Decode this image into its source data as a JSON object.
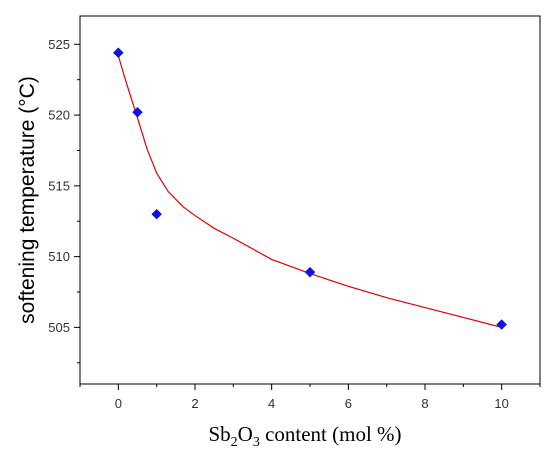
{
  "chart_data": {
    "type": "scatter",
    "series": [
      {
        "x": [
          0,
          0.5,
          1,
          5,
          10
        ],
        "y": [
          524.4,
          520.2,
          513.0,
          508.9,
          505.2
        ],
        "marker": "diamond",
        "color": "#1010e0"
      }
    ],
    "fit": {
      "color": "#e00000",
      "x": [
        0,
        0.15,
        0.3,
        0.5,
        0.75,
        1.0,
        1.3,
        1.7,
        2,
        2.5,
        3,
        4,
        5,
        6,
        7,
        8,
        9,
        10
      ],
      "y": [
        524.2,
        522.8,
        521.5,
        519.8,
        517.6,
        515.9,
        514.6,
        513.5,
        512.9,
        512.0,
        511.3,
        509.8,
        508.8,
        507.9,
        507.1,
        506.4,
        505.7,
        505.0
      ]
    },
    "xlim": [
      -1,
      11
    ],
    "ylim": [
      501,
      527
    ],
    "xticks": [
      0,
      2,
      4,
      6,
      8,
      10
    ],
    "yticks": [
      505,
      510,
      515,
      520,
      525
    ],
    "xtick_labels": [
      "0",
      "2",
      "4",
      "6",
      "8",
      "10"
    ],
    "ytick_labels": [
      "505",
      "510",
      "515",
      "520",
      "525"
    ],
    "ylabel": "softening temperature (°C)",
    "xlabel": {
      "part1": "Sb",
      "sub1": "2",
      "part2": "O",
      "sub2": "3",
      "part3": " content (mol %)"
    },
    "grid": false
  }
}
